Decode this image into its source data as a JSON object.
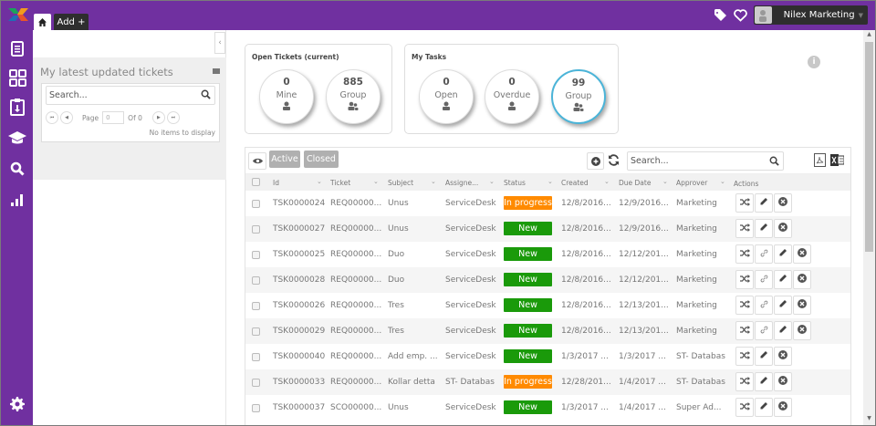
{
  "topbar": {
    "home_tab_icon": "home-icon",
    "add_tab_label": "Add +",
    "tag_icon": "tag-icon",
    "heart_icon": "heart-icon",
    "user_name": "Nilex Marketing",
    "user_caret": "▼",
    "brand_color": "#7030a0"
  },
  "sidebar": {
    "items": [
      {
        "name": "tickets",
        "icon": "document-list-icon"
      },
      {
        "name": "dashboard",
        "icon": "modules-icon"
      },
      {
        "name": "tasks",
        "icon": "clipboard-icon"
      },
      {
        "name": "knowledge",
        "icon": "graduation-cap-icon"
      },
      {
        "name": "search",
        "icon": "search-icon"
      },
      {
        "name": "reports",
        "icon": "bar-chart-icon"
      },
      {
        "name": "settings",
        "icon": "gear-icon"
      }
    ]
  },
  "left_panel": {
    "collapse_label": "‹",
    "title": "My latest updated tickets",
    "search_placeholder": "Search...",
    "page_label": "Page",
    "page_value": "0",
    "of_label": "Of 0",
    "empty_text": "No items to display",
    "pager_first": "⏮",
    "pager_prev": "◀",
    "pager_next": "▶",
    "pager_last": "⏭"
  },
  "open_tickets": {
    "title": "Open Tickets (current)",
    "mine": {
      "count": "0",
      "label": "Mine"
    },
    "group": {
      "count": "885",
      "label": "Group"
    }
  },
  "my_tasks": {
    "title": "My Tasks",
    "open": {
      "count": "0",
      "label": "Open"
    },
    "overdue": {
      "count": "0",
      "label": "Overdue"
    },
    "group": {
      "count": "99",
      "label": "Group"
    }
  },
  "grid": {
    "active_label": "Active",
    "closed_label": "Closed",
    "search_placeholder": "Search...",
    "columns": [
      "Id",
      "Ticket",
      "Subject",
      "Assigne...",
      "Status",
      "Created",
      "Due Date",
      "Approver",
      "Actions"
    ],
    "status_colors": {
      "New": "#1a9a0a",
      "In progress": "#ff8a00"
    },
    "rows": [
      {
        "id": "TSK0000024",
        "ticket": "REQ00000...",
        "subject": "Unus",
        "assignee": "ServiceDesk",
        "status": "In progress",
        "created": "12/8/2016...",
        "due": "12/9/2016...",
        "approver": "Marketing",
        "link": false
      },
      {
        "id": "TSK0000027",
        "ticket": "REQ00000...",
        "subject": "Unus",
        "assignee": "ServiceDesk",
        "status": "New",
        "created": "12/8/2016...",
        "due": "12/9/2016...",
        "approver": "Marketing",
        "link": false
      },
      {
        "id": "TSK0000025",
        "ticket": "REQ00000...",
        "subject": "Duo",
        "assignee": "ServiceDesk",
        "status": "New",
        "created": "12/8/2016...",
        "due": "12/12/201...",
        "approver": "Marketing",
        "link": true
      },
      {
        "id": "TSK0000028",
        "ticket": "REQ00000...",
        "subject": "Duo",
        "assignee": "ServiceDesk",
        "status": "New",
        "created": "12/8/2016...",
        "due": "12/12/201...",
        "approver": "Marketing",
        "link": true
      },
      {
        "id": "TSK0000026",
        "ticket": "REQ00000...",
        "subject": "Tres",
        "assignee": "ServiceDesk",
        "status": "New",
        "created": "12/8/2016...",
        "due": "12/13/201...",
        "approver": "Marketing",
        "link": true
      },
      {
        "id": "TSK0000029",
        "ticket": "REQ00000...",
        "subject": "Tres",
        "assignee": "ServiceDesk",
        "status": "New",
        "created": "12/8/2016...",
        "due": "12/13/201...",
        "approver": "Marketing",
        "link": true
      },
      {
        "id": "TSK0000040",
        "ticket": "REQ00000...",
        "subject": "Add emp. ...",
        "assignee": "ServiceDesk",
        "status": "New",
        "created": "1/3/2017 ...",
        "due": "1/3/2017 ...",
        "approver": "ST- Databas",
        "link": false
      },
      {
        "id": "TSK0000033",
        "ticket": "REQ00000...",
        "subject": "Kollar detta",
        "assignee": "ST- Databas",
        "status": "In progress",
        "created": "12/28/201...",
        "due": "1/4/2017 ...",
        "approver": "ST- Databas",
        "link": false
      },
      {
        "id": "TSK0000037",
        "ticket": "SCO00000...",
        "subject": "Unus",
        "assignee": "ServiceDesk",
        "status": "New",
        "created": "1/3/2017 ...",
        "due": "1/4/2017 ...",
        "approver": "Super Ad...",
        "link": false
      }
    ]
  }
}
